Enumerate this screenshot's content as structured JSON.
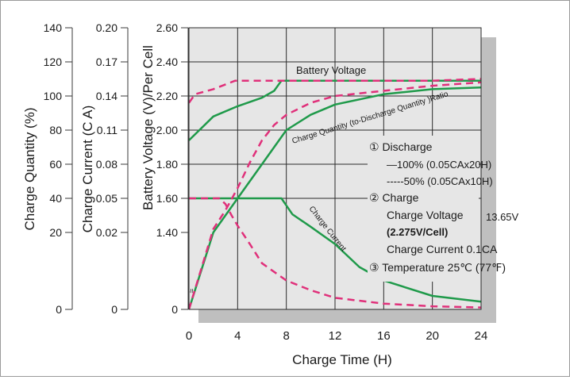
{
  "chart_data": {
    "type": "line",
    "xlabel": "Charge Time (H)",
    "xlim": [
      0,
      24
    ],
    "x_ticks": [
      "0",
      "4",
      "8",
      "12",
      "16",
      "20",
      "24"
    ],
    "axes": [
      {
        "label": "Charge Quantity (%)",
        "ticks": [
          "0",
          "20",
          "40",
          "60",
          "80",
          "100",
          "120",
          "140"
        ]
      },
      {
        "label": "Charge Current (C A)",
        "ticks": [
          "0",
          "0.02",
          "0.05",
          "0.08",
          "0.11",
          "0.14",
          "0.17",
          "0.20"
        ]
      },
      {
        "label": "Battery Voltage (V)/Per Cell",
        "ticks": [
          "0",
          "1.40",
          "1.60",
          "1.80",
          "2.00",
          "2.20",
          "2.40",
          "2.60"
        ]
      }
    ],
    "grid": true,
    "series": [
      {
        "name": "Battery Voltage",
        "axis": "voltage",
        "style": "100% discharge",
        "x": [
          0,
          2,
          4,
          6,
          7,
          7.6,
          12,
          16,
          20,
          24
        ],
        "y": [
          1.94,
          2.08,
          2.14,
          2.19,
          2.23,
          2.29,
          2.29,
          2.29,
          2.29,
          2.29
        ]
      },
      {
        "name": "Battery Voltage",
        "axis": "voltage",
        "style": "50% discharge",
        "x": [
          0,
          0.5,
          2,
          3.8,
          6,
          7.6,
          12,
          16,
          20,
          24
        ],
        "y": [
          2.16,
          2.21,
          2.24,
          2.29,
          2.29,
          2.29,
          2.29,
          2.29,
          2.29,
          2.3
        ]
      },
      {
        "name": "Charge Current",
        "axis": "current",
        "style": "100% discharge",
        "x": [
          0,
          3,
          6,
          7.6,
          8.5,
          10,
          12,
          14,
          16,
          20,
          24
        ],
        "y": [
          0.05,
          0.05,
          0.05,
          0.05,
          0.036,
          0.025,
          0.017,
          0.011,
          0.0075,
          0.0035,
          0.002
        ]
      },
      {
        "name": "Charge Current",
        "axis": "current",
        "style": "50% discharge",
        "x": [
          0,
          2.5,
          3,
          3.5,
          4,
          5,
          6,
          8,
          10,
          12,
          16,
          20,
          24
        ],
        "y": [
          0.05,
          0.05,
          0.045,
          0.035,
          0.026,
          0.017,
          0.012,
          0.0075,
          0.005,
          0.003,
          0.0015,
          0.0008,
          0.0005
        ]
      },
      {
        "name": "Charge Quantity (to-Discharge Quantity)Ratio",
        "axis": "quantity",
        "style": "100% discharge",
        "x": [
          0,
          2,
          4,
          6,
          7.6,
          8,
          10,
          12,
          14,
          16,
          20,
          24
        ],
        "y": [
          0,
          20,
          40,
          60,
          76,
          80,
          89,
          95,
          98,
          101,
          104,
          105
        ]
      },
      {
        "name": "Charge Quantity (to-Discharge Quantity)Ratio",
        "axis": "quantity",
        "style": "50% discharge",
        "x": [
          0,
          2,
          3,
          4,
          5,
          6,
          7,
          8,
          10,
          12,
          16,
          20,
          24
        ],
        "y": [
          0,
          22,
          33,
          46,
          61,
          74,
          83,
          89,
          96,
          100,
          103,
          106,
          108
        ]
      }
    ],
    "annotations": {
      "voltage_label": "Battery Voltage",
      "ratio_label": "Charge Quantity (to-Discharge Quantity )Ratio",
      "current_label": "Charge Current",
      "notes": [
        "① Discharge",
        "—100% (0.05CAx20H)",
        "-----50% (0.05CAx10H)",
        "② Charge",
        "Charge Voltage",
        "13.65V",
        "(2.275V/Cell)",
        "Charge Current 0.1CA",
        "③ Temperature 25℃ (77℉)"
      ],
      "break_mark": "≈"
    },
    "colors": {
      "plot_bg": "#e6e6e6",
      "shadow": "#bfbfbf",
      "grid": "#2a2a2a",
      "solid_series": "#1f9a4a",
      "dashed_series": "#e0307a"
    }
  }
}
